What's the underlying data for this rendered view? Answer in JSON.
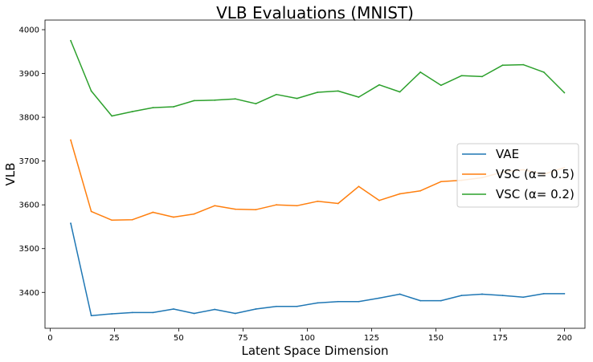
{
  "chart_data": {
    "type": "line",
    "title": "VLB Evaluations (MNIST)",
    "xlabel": "Latent Space Dimension",
    "ylabel": "VLB",
    "xlim": [
      -2,
      208
    ],
    "ylim": [
      3318,
      4022
    ],
    "xticks": [
      0,
      25,
      50,
      75,
      100,
      125,
      150,
      175,
      200
    ],
    "yticks": [
      3400,
      3500,
      3600,
      3700,
      3800,
      3900,
      4000
    ],
    "xtick_labels": [
      "0",
      "25",
      "50",
      "75",
      "100",
      "125",
      "150",
      "175",
      "200"
    ],
    "ytick_labels": [
      "3400",
      "3500",
      "3600",
      "3700",
      "3800",
      "3900",
      "4000"
    ],
    "grid": false,
    "legend_position": "right",
    "x": [
      8,
      16,
      24,
      32,
      40,
      48,
      56,
      64,
      72,
      80,
      88,
      96,
      104,
      112,
      120,
      128,
      136,
      144,
      152,
      160,
      168,
      176,
      184,
      192,
      200
    ],
    "series": [
      {
        "name": "VAE",
        "color": "#1f77b4",
        "values": [
          3558,
          3347,
          3351,
          3354,
          3354,
          3362,
          3352,
          3361,
          3352,
          3362,
          3368,
          3368,
          3376,
          3379,
          3379,
          3387,
          3396,
          3381,
          3381,
          3393,
          3396,
          3393,
          3389,
          3397,
          3397
        ]
      },
      {
        "name": "VSC (α= 0.5)",
        "color": "#ff7f0e",
        "values": [
          3748,
          3585,
          3565,
          3566,
          3583,
          3572,
          3579,
          3598,
          3590,
          3589,
          3600,
          3598,
          3608,
          3603,
          3642,
          3610,
          3625,
          3632,
          3653,
          3656,
          3662,
          3675,
          3680,
          3670,
          3685
        ]
      },
      {
        "name": "VSC (α= 0.2)",
        "color": "#2ca02c",
        "values": [
          3975,
          3860,
          3803,
          3813,
          3822,
          3824,
          3838,
          3839,
          3842,
          3831,
          3852,
          3843,
          3857,
          3860,
          3846,
          3874,
          3858,
          3903,
          3873,
          3895,
          3893,
          3919,
          3920,
          3903,
          3856
        ]
      }
    ]
  }
}
